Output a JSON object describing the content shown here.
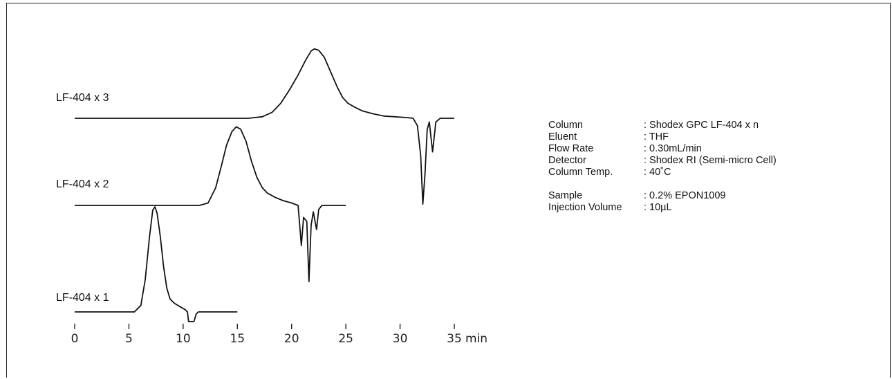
{
  "chart_data": {
    "type": "line",
    "xlabel": "",
    "ylabel": "",
    "x_unit": "min",
    "xlim": [
      0,
      35
    ],
    "x_ticks": [
      "0",
      "5",
      "10",
      "15",
      "20",
      "25",
      "30",
      "35"
    ],
    "grid": false,
    "legend": "none",
    "series": [
      {
        "name": "LF-404 x 3",
        "x_range": [
          0,
          35
        ],
        "peak_time": 22.1,
        "points": [
          [
            0,
            0
          ],
          [
            11,
            0
          ],
          [
            16,
            0
          ],
          [
            17.3,
            0.02
          ],
          [
            18.2,
            0.08
          ],
          [
            19,
            0.2
          ],
          [
            19.8,
            0.38
          ],
          [
            20.6,
            0.58
          ],
          [
            21.3,
            0.78
          ],
          [
            21.8,
            0.9
          ],
          [
            22.1,
            0.93
          ],
          [
            22.5,
            0.91
          ],
          [
            23,
            0.82
          ],
          [
            23.6,
            0.62
          ],
          [
            24.2,
            0.42
          ],
          [
            24.7,
            0.28
          ],
          [
            25.2,
            0.2
          ],
          [
            25.8,
            0.15
          ],
          [
            26.5,
            0.1
          ],
          [
            27.5,
            0.06
          ],
          [
            28.5,
            0.03
          ],
          [
            29.5,
            0.02
          ],
          [
            30.5,
            0.01
          ],
          [
            31.2,
            0
          ],
          [
            31.6,
            -0.1
          ],
          [
            31.9,
            -0.5
          ],
          [
            32.1,
            -1.15
          ],
          [
            32.3,
            -0.75
          ],
          [
            32.5,
            -0.15
          ],
          [
            32.7,
            -0.05
          ],
          [
            33,
            -0.45
          ],
          [
            33.3,
            -0.05
          ],
          [
            33.7,
            0
          ],
          [
            35,
            0
          ]
        ]
      },
      {
        "name": "LF-404 x 2",
        "x_range": [
          0,
          25
        ],
        "peak_time": 15.0,
        "points": [
          [
            0,
            0
          ],
          [
            8,
            0
          ],
          [
            11.5,
            0
          ],
          [
            12.3,
            0.03
          ],
          [
            13,
            0.22
          ],
          [
            13.5,
            0.48
          ],
          [
            14,
            0.75
          ],
          [
            14.5,
            0.92
          ],
          [
            14.9,
            0.98
          ],
          [
            15.3,
            0.95
          ],
          [
            15.8,
            0.8
          ],
          [
            16.3,
            0.55
          ],
          [
            16.8,
            0.35
          ],
          [
            17.3,
            0.22
          ],
          [
            17.8,
            0.15
          ],
          [
            18.5,
            0.1
          ],
          [
            19.2,
            0.06
          ],
          [
            20,
            0.03
          ],
          [
            20.6,
            0
          ],
          [
            20.9,
            -0.5
          ],
          [
            21.1,
            -0.15
          ],
          [
            21.4,
            -0.2
          ],
          [
            21.6,
            -0.95
          ],
          [
            21.8,
            -0.25
          ],
          [
            22,
            -0.08
          ],
          [
            22.3,
            -0.3
          ],
          [
            22.5,
            -0.05
          ],
          [
            22.8,
            0
          ],
          [
            25,
            0
          ]
        ]
      },
      {
        "name": "LF-404 x 1",
        "x_range": [
          0,
          15
        ],
        "peak_time": 7.4,
        "points": [
          [
            0,
            0
          ],
          [
            5.5,
            0
          ],
          [
            6.1,
            0.06
          ],
          [
            6.5,
            0.3
          ],
          [
            6.9,
            0.7
          ],
          [
            7.2,
            0.95
          ],
          [
            7.4,
            0.98
          ],
          [
            7.6,
            0.92
          ],
          [
            7.9,
            0.7
          ],
          [
            8.2,
            0.42
          ],
          [
            8.5,
            0.22
          ],
          [
            8.8,
            0.12
          ],
          [
            9.2,
            0.08
          ],
          [
            9.7,
            0.05
          ],
          [
            10.2,
            0.02
          ],
          [
            10.4,
            0
          ],
          [
            10.5,
            -0.09
          ],
          [
            11,
            -0.09
          ],
          [
            11.2,
            -0.02
          ],
          [
            11.4,
            0
          ],
          [
            15,
            0
          ]
        ]
      }
    ]
  },
  "conditions": {
    "rows": [
      {
        "key": "Column",
        "value": ": Shodex GPC LF-404 x n"
      },
      {
        "key": "Eluent",
        "value": ": THF"
      },
      {
        "key": "Flow Rate",
        "value": ": 0.30mL/min"
      },
      {
        "key": "Detector",
        "value": ": Shodex RI (Semi-micro Cell)"
      },
      {
        "key": "Column Temp.",
        "value": ": 40˚C"
      },
      {
        "key": "Sample",
        "value": ": 0.2% EPON1009"
      },
      {
        "key": "Injection Volume",
        "value": ": 10µL"
      }
    ]
  }
}
